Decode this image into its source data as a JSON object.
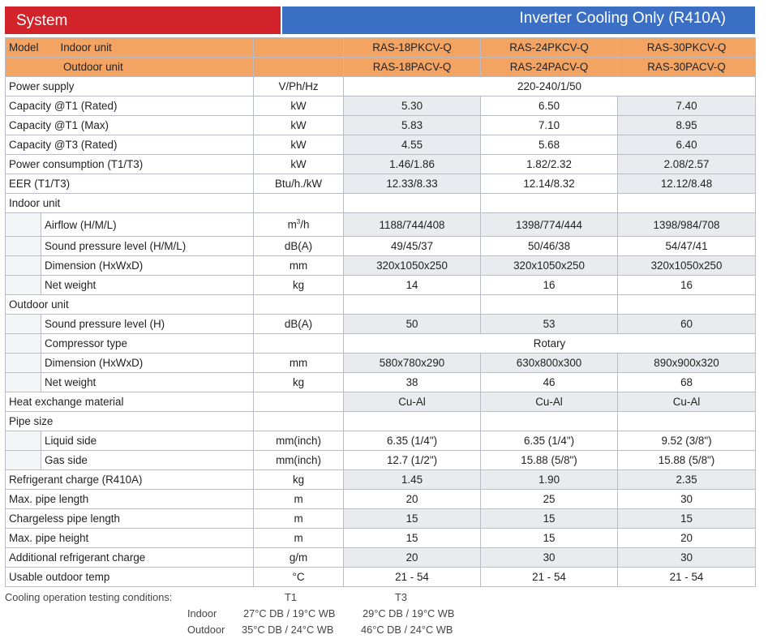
{
  "banner": {
    "left": "System",
    "right": "Inverter Cooling Only (R410A)"
  },
  "header": {
    "model_label": "Model",
    "indoor_label": "Indoor unit",
    "outdoor_label": "Outdoor unit",
    "indoor_models": [
      "RAS-18PKCV-Q",
      "RAS-24PKCV-Q",
      "RAS-30PKCV-Q"
    ],
    "outdoor_models": [
      "RAS-18PACV-Q",
      "RAS-24PACV-Q",
      "RAS-30PACV-Q"
    ]
  },
  "rows": {
    "power_supply": {
      "label": "Power supply",
      "unit": "V/Ph/Hz",
      "value": "220-240/1/50"
    },
    "cap_t1_rated": {
      "label": "Capacity @T1 (Rated)",
      "unit": "kW",
      "values": [
        "5.30",
        "6.50",
        "7.40"
      ]
    },
    "cap_t1_max": {
      "label": "Capacity @T1 (Max)",
      "unit": "kW",
      "values": [
        "5.83",
        "7.10",
        "8.95"
      ]
    },
    "cap_t3_rated": {
      "label": "Capacity @T3 (Rated)",
      "unit": "kW",
      "values": [
        "4.55",
        "5.68",
        "6.40"
      ]
    },
    "power_cons": {
      "label": "Power consumption (T1/T3)",
      "unit": "kW",
      "values": [
        "1.46/1.86",
        "1.82/2.32",
        "2.08/2.57"
      ]
    },
    "eer": {
      "label": "EER (T1/T3)",
      "unit": "Btu/h./kW",
      "values": [
        "12.33/8.33",
        "12.14/8.32",
        "12.12/8.48"
      ]
    },
    "indoor_unit": {
      "label": "Indoor unit"
    },
    "airflow": {
      "label": "Airflow (H/M/L)",
      "unit_base": "m",
      "unit_sup": "3",
      "unit_tail": "/h",
      "values": [
        "1188/744/408",
        "1398/774/444",
        "1398/984/708"
      ]
    },
    "in_sound": {
      "label": "Sound pressure level (H/M/L)",
      "unit": "dB(A)",
      "values": [
        "49/45/37",
        "50/46/38",
        "54/47/41"
      ]
    },
    "in_dim": {
      "label": "Dimension (HxWxD)",
      "unit": "mm",
      "values": [
        "320x1050x250",
        "320x1050x250",
        "320x1050x250"
      ]
    },
    "in_weight": {
      "label": "Net weight",
      "unit": "kg",
      "values": [
        "14",
        "16",
        "16"
      ]
    },
    "outdoor_unit": {
      "label": "Outdoor unit"
    },
    "out_sound": {
      "label": "Sound pressure level (H)",
      "unit": "dB(A)",
      "values": [
        "50",
        "53",
        "60"
      ]
    },
    "compressor": {
      "label": "Compressor type",
      "unit": "",
      "value": "Rotary"
    },
    "out_dim": {
      "label": "Dimension (HxWxD)",
      "unit": "mm",
      "values": [
        "580x780x290",
        "630x800x300",
        "890x900x320"
      ]
    },
    "out_weight": {
      "label": "Net weight",
      "unit": "kg",
      "values": [
        "38",
        "46",
        "68"
      ]
    },
    "heat_ex": {
      "label": "Heat exchange material",
      "unit": "",
      "values": [
        "Cu-Al",
        "Cu-Al",
        "Cu-Al"
      ]
    },
    "pipe_size": {
      "label": "Pipe size"
    },
    "liquid": {
      "label": "Liquid side",
      "unit": "mm(inch)",
      "values": [
        "6.35 (1/4\")",
        "6.35 (1/4\")",
        "9.52 (3/8\")"
      ]
    },
    "gas": {
      "label": "Gas side",
      "unit": "mm(inch)",
      "values": [
        "12.7 (1/2\")",
        "15.88 (5/8\")",
        "15.88 (5/8\")"
      ]
    },
    "ref_charge": {
      "label": "Refrigerant charge (R410A)",
      "unit": "kg",
      "values": [
        "1.45",
        "1.90",
        "2.35"
      ]
    },
    "max_len": {
      "label": "Max. pipe length",
      "unit": "m",
      "values": [
        "20",
        "25",
        "30"
      ]
    },
    "chargeless": {
      "label": "Chargeless pipe length",
      "unit": "m",
      "values": [
        "15",
        "15",
        "15"
      ]
    },
    "max_height": {
      "label": "Max. pipe height",
      "unit": "m",
      "values": [
        "15",
        "15",
        "20"
      ]
    },
    "add_ref": {
      "label": "Additional refrigerant charge",
      "unit": "g/m",
      "values": [
        "20",
        "30",
        "30"
      ]
    },
    "usable_temp": {
      "label": "Usable outdoor temp",
      "unit": "°C",
      "values": [
        "21 - 54",
        "21 - 54",
        "21 - 54"
      ]
    }
  },
  "footer": {
    "title": "Cooling operation testing conditions:",
    "t1": "T1",
    "t3": "T3",
    "indoor": "Indoor",
    "outdoor": "Outdoor",
    "indoor_t1": "27°C DB / 19°C WB",
    "indoor_t3": "29°C DB / 19°C WB",
    "outdoor_t1": "35°C DB / 24°C WB",
    "outdoor_t3": "46°C DB / 24°C WB"
  }
}
